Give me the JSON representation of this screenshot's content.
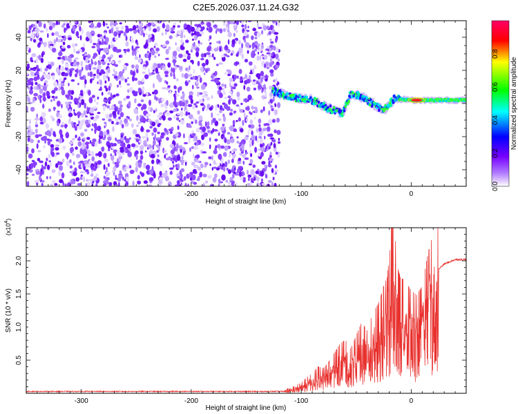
{
  "chart_data": [
    {
      "type": "heatmap",
      "title": "C2E5.2026.037.11.24.G32",
      "xlabel": "Height of straight line (km)",
      "ylabel": "Frequency (Hz)",
      "xlim": [
        -350,
        50
      ],
      "ylim": [
        -50,
        50
      ],
      "x_ticks": [
        -300,
        -200,
        -100,
        0
      ],
      "y_ticks": [
        40,
        20,
        0,
        -20,
        -40
      ],
      "colorbar": {
        "label": "Normalized spectral amplitude",
        "range": [
          0,
          1
        ],
        "ticks": [
          "0.0",
          "0.2",
          "0.4",
          "0.6",
          "0.8"
        ],
        "colormap": [
          "#ffffff",
          "#7700ff",
          "#0000ff",
          "#00ffff",
          "#00ff00",
          "#ffff00",
          "#ff0000",
          "#ff0066"
        ]
      },
      "description_regions": {
        "noise_extent_x": [
          -350,
          -120
        ],
        "signal_track": [
          [
            -128,
            8
          ],
          [
            -110,
            4
          ],
          [
            -90,
            2
          ],
          [
            -75,
            -3
          ],
          [
            -62,
            -6
          ],
          [
            -55,
            6
          ],
          [
            -45,
            4
          ],
          [
            -35,
            0
          ],
          [
            -25,
            -4
          ],
          [
            -15,
            3
          ],
          [
            0,
            2
          ],
          [
            20,
            2
          ],
          [
            50,
            2
          ]
        ],
        "peak": {
          "x": 5,
          "y": 2
        }
      }
    },
    {
      "type": "line",
      "xlabel": "Height of straight line (km)",
      "ylabel": "SNR (10 * v/v)",
      "yunit": "(x10",
      "yunit_exp": "4",
      "yunit_close": ")",
      "xlim": [
        -350,
        50
      ],
      "ylim": [
        0,
        2.5
      ],
      "x_ticks": [
        -300,
        -200,
        -100,
        0
      ],
      "y_ticks": [
        "0.5",
        "1.0",
        "1.5",
        "2.0"
      ],
      "color": "#e8312e",
      "series": [
        {
          "x": [
            -350,
            -300,
            -250,
            -200,
            -150,
            -120,
            -110,
            -100,
            -95,
            -90,
            -85,
            -80,
            -75,
            -70,
            -65,
            -60,
            -55,
            -50,
            -45,
            -40,
            -35,
            -30,
            -25,
            -22,
            -20,
            -18,
            -16,
            -14,
            -12,
            -10,
            -5,
            0,
            5,
            10,
            15,
            20,
            30,
            40,
            50
          ],
          "y": [
            0.02,
            0.02,
            0.02,
            0.02,
            0.02,
            0.03,
            0.06,
            0.12,
            0.18,
            0.22,
            0.3,
            0.28,
            0.35,
            0.45,
            0.55,
            0.6,
            0.5,
            0.65,
            0.8,
            0.7,
            0.9,
            1.0,
            1.2,
            1.3,
            1.5,
            1.9,
            2.4,
            1.6,
            1.4,
            1.3,
            1.25,
            1.15,
            1.1,
            1.2,
            1.55,
            1.8,
            1.95,
            2.02,
            2.02
          ]
        }
      ]
    }
  ]
}
